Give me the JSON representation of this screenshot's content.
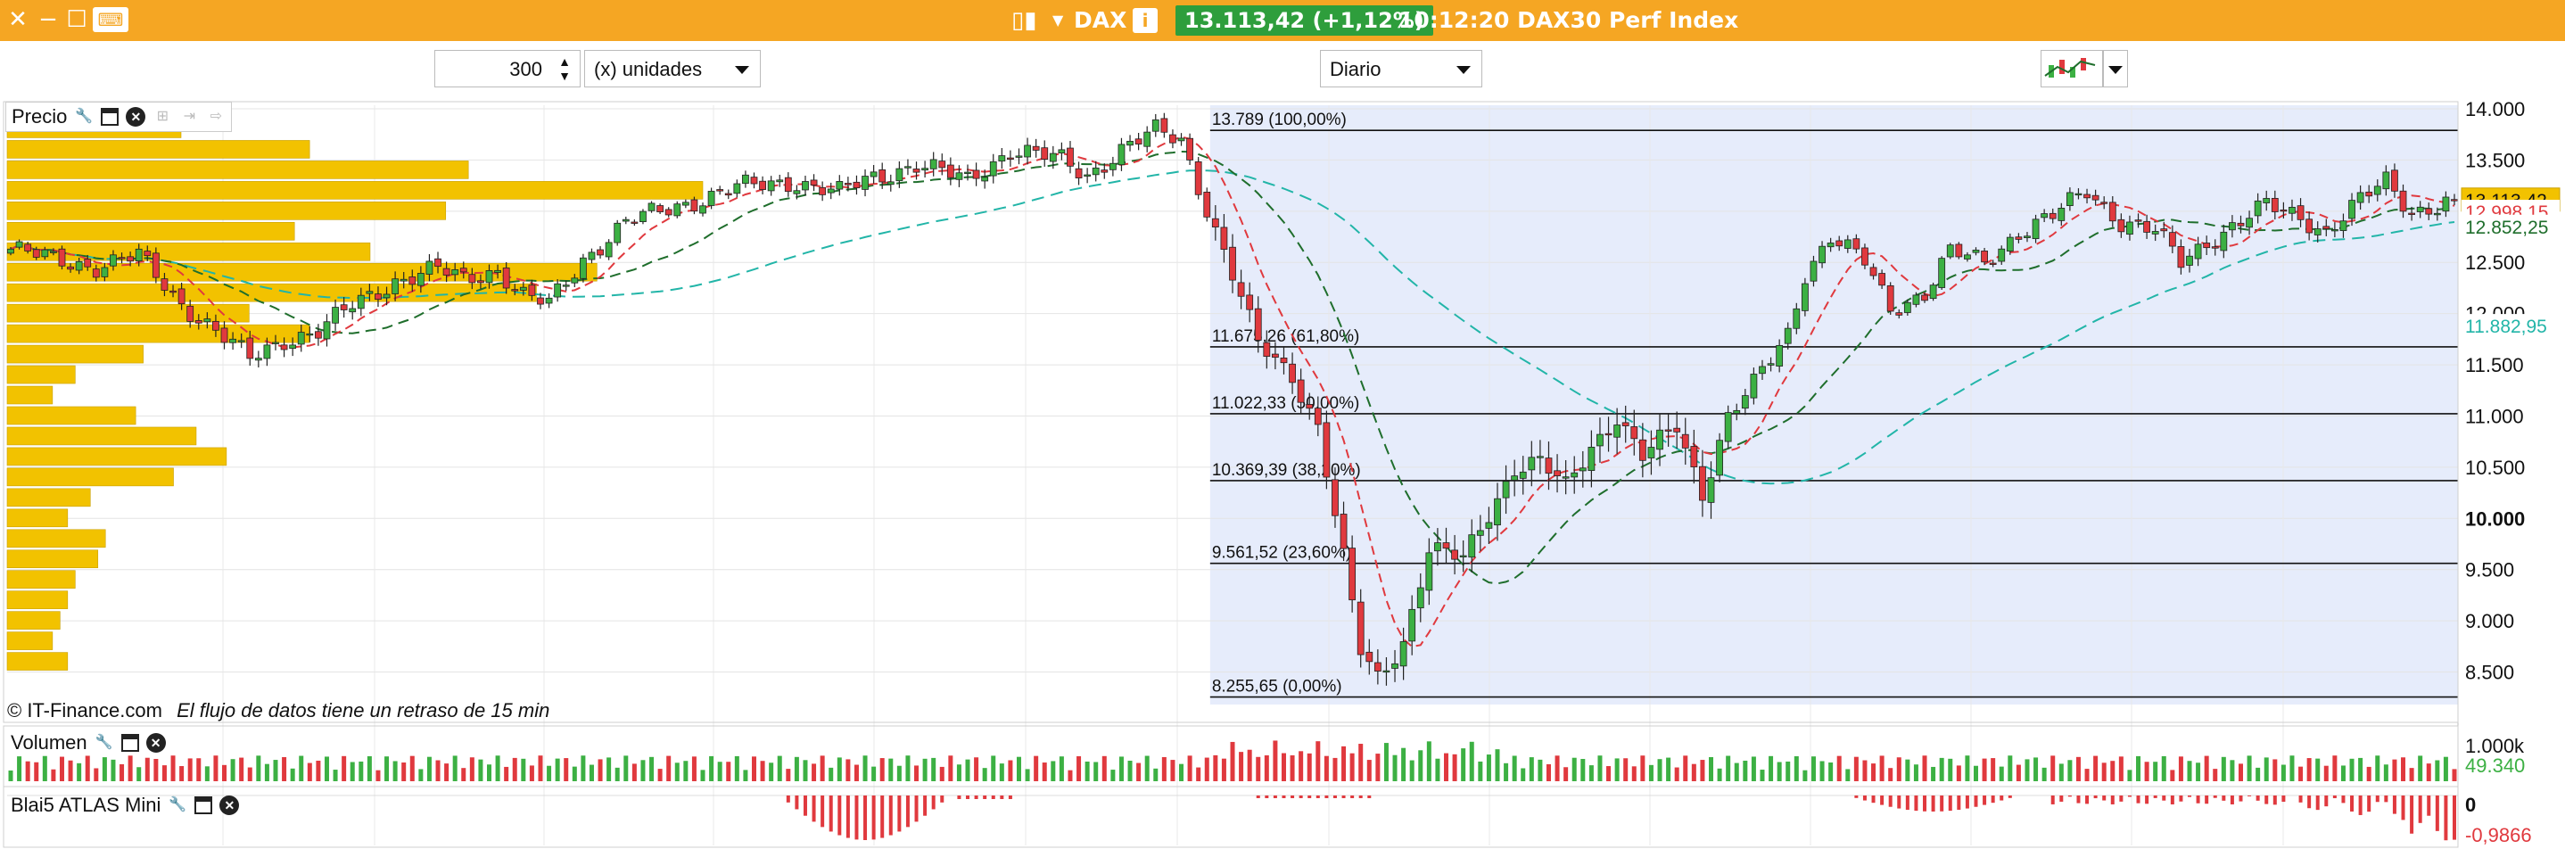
{
  "titlebar": {
    "symbol": "DAX",
    "price_badge": "13.113,42 (+1,12%)",
    "time_info": "10:12:20 DAX30 Perf Index"
  },
  "toolbar": {
    "count_value": "300",
    "unit_select": "(x) unidades",
    "period_select": "Diario"
  },
  "panels": {
    "price_label": "Precio",
    "volume_label": "Volumen",
    "indicator_label": "Blai5 ATLAS Mini"
  },
  "footer": {
    "copyright": "© IT-Finance.com",
    "delay_note": "El flujo de datos tiene un retraso de 15 min"
  },
  "colors": {
    "titlebar": "#f5a623",
    "up_candle": "#3cb043",
    "down_candle": "#e0393e",
    "profile": "#f2c200",
    "fib_zone": "#e6ecfb",
    "ma_short": "#e0393e",
    "ma_mid": "#1f6e2c",
    "ma_long": "#22b5a8"
  },
  "chart_data": [
    {
      "type": "candlestick",
      "symbol": "DAX",
      "y_axis": {
        "ticks": [
          "14.000",
          "13.500",
          "13.000",
          "12.500",
          "12.000",
          "11.500",
          "11.000",
          "10.500",
          "10.000",
          "9.500",
          "9.000",
          "8.500"
        ],
        "ylim": [
          8200,
          14000
        ]
      },
      "price_labels": [
        {
          "text": "13.113,42",
          "value": 13113.42,
          "color": "#f2c200"
        },
        {
          "text": "12.998,15",
          "value": 12998.15,
          "color": "#e0393e"
        },
        {
          "text": "12.852,25",
          "value": 12852.25,
          "color": "#1f6e2c"
        },
        {
          "text": "11.882,95",
          "value": 11882.95,
          "color": "#22b5a8"
        }
      ],
      "fibonacci": [
        {
          "label": "13.789 (100,00%)",
          "value": 13789
        },
        {
          "label": "11.675,26 (61,80%)",
          "value": 11675.26
        },
        {
          "label": "11.022,33 (50,00%)",
          "value": 11022.33
        },
        {
          "label": "10.369,39 (38,20%)",
          "value": 10369.39
        },
        {
          "label": "9.561,52 (23,60%)",
          "value": 9561.52
        },
        {
          "label": "8.255,65 (0,00%)",
          "value": 8255.65
        }
      ],
      "anchors": [
        [
          0,
          12630
        ],
        [
          5,
          12530
        ],
        [
          10,
          12460
        ],
        [
          15,
          12560
        ],
        [
          20,
          12100
        ],
        [
          25,
          11760
        ],
        [
          28,
          11560
        ],
        [
          32,
          11750
        ],
        [
          36,
          11820
        ],
        [
          40,
          12080
        ],
        [
          45,
          12320
        ],
        [
          50,
          12430
        ],
        [
          53,
          12340
        ],
        [
          57,
          12430
        ],
        [
          60,
          12170
        ],
        [
          63,
          12090
        ],
        [
          67,
          12530
        ],
        [
          72,
          12890
        ],
        [
          78,
          13050
        ],
        [
          85,
          13230
        ],
        [
          92,
          13290
        ],
        [
          97,
          13180
        ],
        [
          100,
          13300
        ],
        [
          106,
          13460
        ],
        [
          112,
          13300
        ],
        [
          117,
          13600
        ],
        [
          123,
          13500
        ],
        [
          126,
          13350
        ],
        [
          130,
          13600
        ],
        [
          134,
          13780
        ],
        [
          137,
          13700
        ],
        [
          139,
          13250
        ],
        [
          142,
          12600
        ],
        [
          146,
          11700
        ],
        [
          150,
          11400
        ],
        [
          153,
          10900
        ],
        [
          156,
          9600
        ],
        [
          158,
          8700
        ],
        [
          160,
          8440
        ],
        [
          163,
          8800
        ],
        [
          166,
          9700
        ],
        [
          170,
          9600
        ],
        [
          173,
          10050
        ],
        [
          176,
          10500
        ],
        [
          179,
          10550
        ],
        [
          182,
          10300
        ],
        [
          185,
          10700
        ],
        [
          188,
          11000
        ],
        [
          191,
          10600
        ],
        [
          195,
          10900
        ],
        [
          198,
          10250
        ],
        [
          201,
          11000
        ],
        [
          204,
          11300
        ],
        [
          208,
          11800
        ],
        [
          210,
          12400
        ],
        [
          213,
          12750
        ],
        [
          217,
          12500
        ],
        [
          220,
          12050
        ],
        [
          224,
          12200
        ],
        [
          227,
          12600
        ],
        [
          231,
          12500
        ],
        [
          235,
          12800
        ],
        [
          239,
          12950
        ],
        [
          243,
          13200
        ],
        [
          247,
          12900
        ],
        [
          251,
          12800
        ],
        [
          254,
          12500
        ],
        [
          257,
          12700
        ],
        [
          260,
          12850
        ],
        [
          264,
          13050
        ],
        [
          268,
          12950
        ],
        [
          271,
          12800
        ],
        [
          275,
          13100
        ],
        [
          278,
          13300
        ],
        [
          281,
          13000
        ],
        [
          284,
          13050
        ],
        [
          286,
          13113.42
        ]
      ],
      "profile_levels": [
        {
          "price": 13900,
          "volume": 23
        },
        {
          "price": 13700,
          "volume": 40
        },
        {
          "price": 13500,
          "volume": 61
        },
        {
          "price": 13300,
          "volume": 92
        },
        {
          "price": 13100,
          "volume": 58
        },
        {
          "price": 12900,
          "volume": 38
        },
        {
          "price": 12700,
          "volume": 48
        },
        {
          "price": 12500,
          "volume": 78
        },
        {
          "price": 12300,
          "volume": 70
        },
        {
          "price": 12100,
          "volume": 32
        },
        {
          "price": 11900,
          "volume": 40
        },
        {
          "price": 11700,
          "volume": 18
        },
        {
          "price": 11500,
          "volume": 9
        },
        {
          "price": 11300,
          "volume": 6
        },
        {
          "price": 11100,
          "volume": 17
        },
        {
          "price": 10900,
          "volume": 25
        },
        {
          "price": 10700,
          "volume": 29
        },
        {
          "price": 10500,
          "volume": 22
        },
        {
          "price": 10300,
          "volume": 11
        },
        {
          "price": 10100,
          "volume": 8
        },
        {
          "price": 9900,
          "volume": 13
        },
        {
          "price": 9700,
          "volume": 12
        },
        {
          "price": 9500,
          "volume": 9
        },
        {
          "price": 9300,
          "volume": 8
        },
        {
          "price": 9100,
          "volume": 7
        },
        {
          "price": 8900,
          "volume": 6
        },
        {
          "price": 8700,
          "volume": 8
        }
      ]
    },
    {
      "type": "bar",
      "name": "Volumen",
      "y_axis": {
        "ticks": [
          "1.000k"
        ]
      },
      "last_value": "49.340"
    },
    {
      "type": "bar",
      "name": "Blai5 ATLAS Mini",
      "y_axis": {
        "ticks": [
          "0"
        ]
      },
      "last_value": "-0,9866"
    }
  ]
}
